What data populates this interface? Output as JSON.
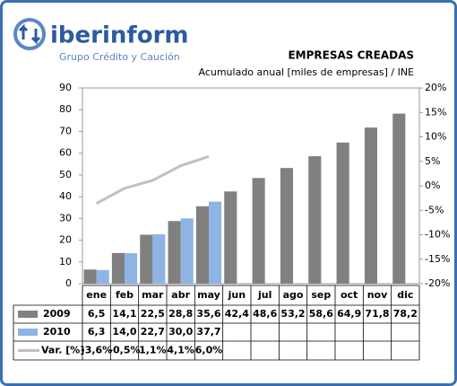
{
  "chart_data": {
    "type": "bar",
    "logo": {
      "name": "iberinform",
      "tagline": "Grupo Crédito y Caución"
    },
    "title": "EMPRESAS CREADAS",
    "subtitle": "Acumulado anual [miles de empresas] / INE",
    "categories": [
      "ene",
      "feb",
      "mar",
      "abr",
      "may",
      "jun",
      "jul",
      "ago",
      "sep",
      "oct",
      "nov",
      "dic"
    ],
    "series": [
      {
        "name": "2009",
        "color": "#808080",
        "values": [
          6.5,
          14.1,
          22.5,
          28.8,
          35.6,
          42.4,
          48.6,
          53.2,
          58.6,
          64.9,
          71.8,
          78.2
        ],
        "value_labels": [
          "6,5",
          "14,1",
          "22,5",
          "28,8",
          "35,6",
          "42,4",
          "48,6",
          "53,2",
          "58,6",
          "64,9",
          "71,8",
          "78,2"
        ]
      },
      {
        "name": "2010",
        "color": "#8eb4e3",
        "values": [
          6.3,
          14.0,
          22.7,
          30.0,
          37.7,
          null,
          null,
          null,
          null,
          null,
          null,
          null
        ],
        "value_labels": [
          "6,3",
          "14,0",
          "22,7",
          "30,0",
          "37,7",
          null,
          null,
          null,
          null,
          null,
          null,
          null
        ]
      },
      {
        "name": "Var. [%]",
        "color": "#c0c0c0",
        "type": "line",
        "axis": "y2",
        "values": [
          -3.6,
          -0.5,
          1.1,
          4.1,
          6.0,
          null,
          null,
          null,
          null,
          null,
          null,
          null
        ],
        "value_labels": [
          "-3,6%",
          "-0,5%",
          "1,1%",
          "4,1%",
          "6,0%",
          null,
          null,
          null,
          null,
          null,
          null,
          null
        ]
      }
    ],
    "ylim": [
      0,
      90
    ],
    "yticks": [
      0,
      10,
      20,
      30,
      40,
      50,
      60,
      70,
      80,
      90
    ],
    "y2lim": [
      -20,
      20
    ],
    "y2ticks": [
      {
        "value": -20,
        "label": "-20%"
      },
      {
        "value": -15,
        "label": "-15%"
      },
      {
        "value": -10,
        "label": "-10%"
      },
      {
        "value": -5,
        "label": "-5%"
      },
      {
        "value": 0,
        "label": "0%"
      },
      {
        "value": 5,
        "label": "5%"
      },
      {
        "value": 10,
        "label": "10%"
      },
      {
        "value": 15,
        "label": "15%"
      },
      {
        "value": 20,
        "label": "20%"
      }
    ],
    "grid": false
  }
}
